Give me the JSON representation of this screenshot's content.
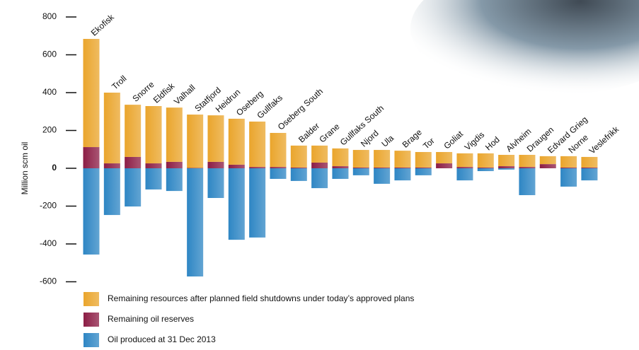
{
  "chart_data": {
    "type": "bar",
    "stacked": true,
    "y_label": "Million scm oil",
    "categories": [
      "Ekofisk",
      "Troll",
      "Snorre",
      "Eldfisk",
      "Valhall",
      "Statfjord",
      "Heidrun",
      "Oseberg",
      "Gullfaks",
      "Oseberg South",
      "Balder",
      "Grane",
      "Gullfaks South",
      "Njord",
      "Ula",
      "Brage",
      "Tor",
      "Goliat",
      "Vigdis",
      "Hod",
      "Alvheim",
      "Draugen",
      "Edvard Grieg",
      "Norne",
      "Veslefrikk"
    ],
    "series": [
      {
        "name": "Remaining resources after planned field shutdowns under today’s approved plans",
        "color": "#eaa52c",
        "values": [
          572,
          374,
          276,
          303,
          287,
          282,
          246,
          243,
          240,
          180,
          116,
          90,
          94,
          93,
          93,
          89,
          82,
          60,
          72,
          75,
          60,
          64,
          42,
          60,
          56
        ]
      },
      {
        "name": "Remaining oil reserves",
        "color": "#8c1d45",
        "values": [
          112,
          26,
          60,
          26,
          34,
          2,
          34,
          19,
          7,
          7,
          4,
          30,
          11,
          4,
          4,
          4,
          4,
          26,
          7,
          4,
          11,
          7,
          22,
          4,
          4
        ]
      },
      {
        "name": "Oil produced at 31 Dec 2013",
        "color": "#2e86c4",
        "values": [
          -456,
          -247,
          -202,
          -112,
          -120,
          -572,
          -157,
          -378,
          -366,
          -56,
          -67,
          -105,
          -56,
          -37,
          -82,
          -64,
          -37,
          0,
          -64,
          -15,
          -7,
          -142,
          0,
          -97,
          -64
        ]
      }
    ],
    "ylim": [
      -600,
      800
    ],
    "yticks": [
      800,
      600,
      400,
      200,
      0,
      -200,
      -400,
      -600
    ]
  }
}
